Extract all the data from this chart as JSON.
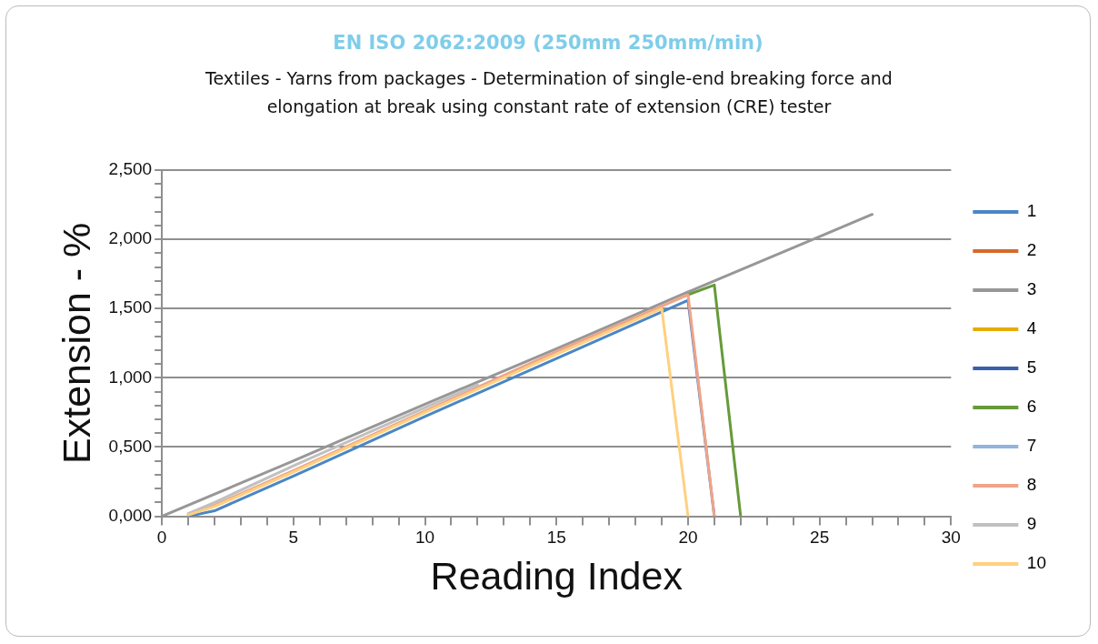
{
  "chart_data": {
    "type": "line",
    "title": "EN ISO 2062:2009 (250mm 250mm/min)",
    "subtitle": "Textiles - Yarns from packages - Determination of single-end breaking force and elongation at break using constant rate of extension (CRE) tester",
    "xlabel": "Reading Index",
    "ylabel": "Extension - %",
    "xlim": [
      0,
      30
    ],
    "xticks": [
      0,
      {
        "value": 1,
        "label": null
      },
      {
        "value": 2,
        "label": null
      },
      {
        "value": 3,
        "label": null
      },
      {
        "value": 4,
        "label": null
      },
      5,
      {
        "value": 6,
        "label": null
      },
      {
        "value": 7,
        "label": null
      },
      {
        "value": 8,
        "label": null
      },
      {
        "value": 9,
        "label": null
      },
      10,
      {
        "value": 11,
        "label": null
      },
      {
        "value": 12,
        "label": null
      },
      {
        "value": 13,
        "label": null
      },
      {
        "value": 14,
        "label": null
      },
      15,
      {
        "value": 16,
        "label": null
      },
      {
        "value": 17,
        "label": null
      },
      {
        "value": 18,
        "label": null
      },
      {
        "value": 19,
        "label": null
      },
      20,
      {
        "value": 21,
        "label": null
      },
      {
        "value": 22,
        "label": null
      },
      {
        "value": 23,
        "label": null
      },
      {
        "value": 24,
        "label": null
      },
      25,
      {
        "value": 26,
        "label": null
      },
      {
        "value": 27,
        "label": null
      },
      {
        "value": 28,
        "label": null
      },
      {
        "value": 29,
        "label": null
      },
      30
    ],
    "ylim": [
      0,
      2.5
    ],
    "yticks": [
      {
        "value": 0,
        "label": "0,000"
      },
      {
        "value": 0.1,
        "label": null
      },
      {
        "value": 0.2,
        "label": null
      },
      {
        "value": 0.3,
        "label": null
      },
      {
        "value": 0.4,
        "label": null
      },
      {
        "value": 0.5,
        "label": "0,500"
      },
      {
        "value": 0.6,
        "label": null
      },
      {
        "value": 0.7,
        "label": null
      },
      {
        "value": 0.8,
        "label": null
      },
      {
        "value": 0.9,
        "label": null
      },
      {
        "value": 1.0,
        "label": "1,000"
      },
      {
        "value": 1.1,
        "label": null
      },
      {
        "value": 1.2,
        "label": null
      },
      {
        "value": 1.3,
        "label": null
      },
      {
        "value": 1.4,
        "label": null
      },
      {
        "value": 1.5,
        "label": "1,500"
      },
      {
        "value": 1.6,
        "label": null
      },
      {
        "value": 1.7,
        "label": null
      },
      {
        "value": 1.8,
        "label": null
      },
      {
        "value": 1.9,
        "label": null
      },
      {
        "value": 2.0,
        "label": "2,000"
      },
      {
        "value": 2.1,
        "label": null
      },
      {
        "value": 2.2,
        "label": null
      },
      {
        "value": 2.3,
        "label": null
      },
      {
        "value": 2.4,
        "label": null
      },
      {
        "value": 2.5,
        "label": "2,500"
      }
    ],
    "grid": "y",
    "legend": "right",
    "marker": "none",
    "line_style": "solid",
    "series": [
      {
        "name": "1",
        "color": "#4a86c5",
        "x": [
          1,
          2,
          5,
          10,
          15,
          20,
          21
        ],
        "values": [
          0,
          0.04,
          0.29,
          0.72,
          1.14,
          1.56,
          0
        ]
      },
      {
        "name": "2",
        "color": "#d4692a"
      },
      {
        "name": "3",
        "color": "#979797",
        "x": [
          0,
          5,
          10,
          15,
          20,
          25,
          27
        ],
        "values": [
          0,
          0.4,
          0.81,
          1.21,
          1.62,
          2.02,
          2.18
        ]
      },
      {
        "name": "4",
        "color": "#e6ac00"
      },
      {
        "name": "5",
        "color": "#3a5fa8"
      },
      {
        "name": "6",
        "color": "#669a3a",
        "x": [
          20,
          21,
          22
        ],
        "values": [
          1.6,
          1.67,
          0
        ]
      },
      {
        "name": "7",
        "color": "#92b4de"
      },
      {
        "name": "8",
        "color": "#f0a488",
        "x": [
          1,
          2,
          5,
          10,
          15,
          20,
          21
        ],
        "values": [
          0.01,
          0.08,
          0.33,
          0.76,
          1.19,
          1.6,
          0
        ]
      },
      {
        "name": "9",
        "color": "#c0c0c0",
        "x": [
          1,
          2,
          5,
          10,
          12
        ],
        "values": [
          0.02,
          0.1,
          0.365,
          0.785,
          0.95
        ]
      },
      {
        "name": "10",
        "color": "#ffd07f",
        "x": [
          1,
          2,
          5,
          10,
          15,
          19,
          20
        ],
        "values": [
          0.01,
          0.07,
          0.32,
          0.75,
          1.17,
          1.5,
          0
        ]
      }
    ]
  }
}
